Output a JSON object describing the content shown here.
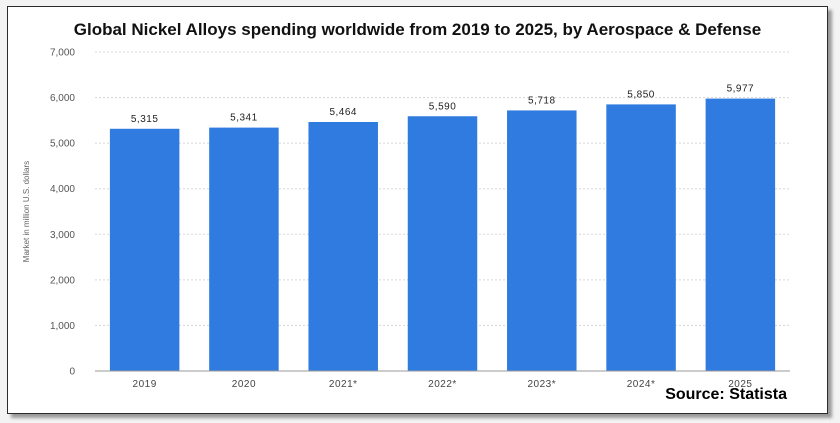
{
  "chart_data": {
    "type": "bar",
    "title": "Global Nickel Alloys spending worldwide from 2019 to 2025, by Aerospace & Defense",
    "ylabel": "Market in million U.S. dollars",
    "xlabel": "",
    "categories": [
      "2019",
      "2020",
      "2021*",
      "2022*",
      "2023*",
      "2024*",
      "2025"
    ],
    "values": [
      5315,
      5341,
      5464,
      5590,
      5718,
      5850,
      5977
    ],
    "value_labels": [
      "5,315",
      "5,341",
      "5,464",
      "5,590",
      "5,718",
      "5,850",
      "5,977"
    ],
    "ylim": [
      0,
      7000
    ],
    "yticks": [
      0,
      1000,
      2000,
      3000,
      4000,
      5000,
      6000,
      7000
    ],
    "ytick_labels": [
      "0",
      "1,000",
      "2,000",
      "3,000",
      "4,000",
      "5,000",
      "6,000",
      "7,000"
    ],
    "grid": true,
    "bar_color": "#2f7be0"
  },
  "source": "Source: Statista"
}
